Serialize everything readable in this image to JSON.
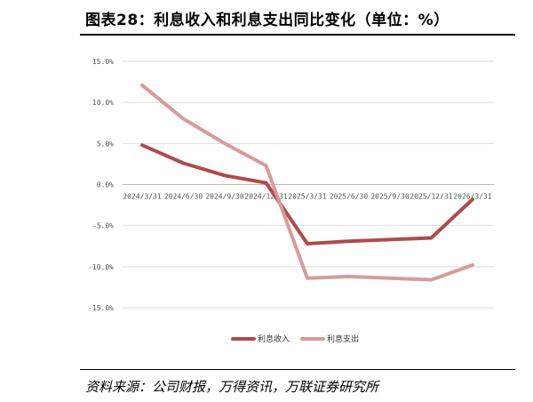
{
  "header": {
    "title": "图表28：利息收入和利息支出同比变化（单位：%）"
  },
  "footer": {
    "source": "资料来源：公司财报，万得资讯，万联证券研究所"
  },
  "chart_data": {
    "type": "line",
    "title": "图表28：利息收入和利息支出同比变化（单位：%）",
    "categories": [
      "2024/3/31",
      "2024/6/30",
      "2024/9/30",
      "2024/12/31",
      "2025/3/31",
      "2025/6/30",
      "2025/9/30",
      "2025/12/31",
      "2026/3/31"
    ],
    "series": [
      {
        "name": "利息收入",
        "color": "#b04a4a",
        "values": [
          4.8,
          2.6,
          1.1,
          0.2,
          -7.2,
          -6.9,
          -6.7,
          -6.5,
          -1.8
        ]
      },
      {
        "name": "利息支出",
        "color": "#d99a9a",
        "values": [
          12.1,
          8.0,
          5.0,
          2.3,
          -11.4,
          -11.2,
          -11.4,
          -11.6,
          -9.8
        ]
      }
    ],
    "yticks": [
      "15.0%",
      "10.0%",
      "5.0%",
      "0.0%",
      "-5.0%",
      "-10.0%",
      "-15.0%"
    ],
    "ytick_values": [
      15,
      10,
      5,
      0,
      -5,
      -10,
      -15
    ],
    "ylim": [
      -15,
      15
    ],
    "grid": true,
    "legend_position": "bottom"
  }
}
